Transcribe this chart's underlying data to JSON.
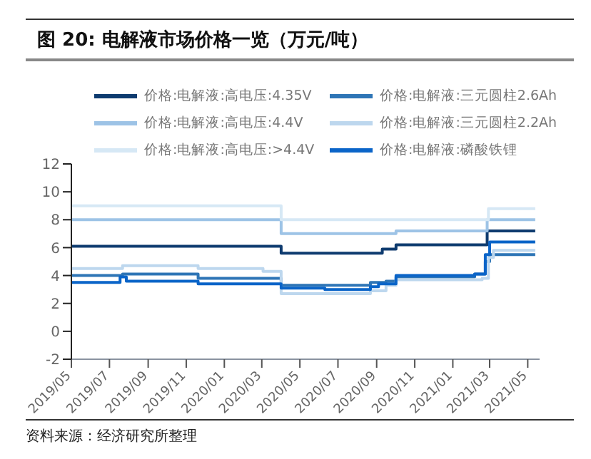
{
  "chart_data": {
    "type": "step",
    "title": "图 20: 电解液市场价格一览（万元/吨）",
    "annotations": [
      "资料来源：经济研究所整理"
    ],
    "xlim": [
      "2019-05-01",
      "2021-05-20"
    ],
    "xticks": [
      {
        "value": "2019-05",
        "label": "2019/05"
      },
      {
        "value": "2019-07",
        "label": "2019/07"
      },
      {
        "value": "2019-09",
        "label": "2019/09"
      },
      {
        "value": "2019-11",
        "label": "2019/11"
      },
      {
        "value": "2020-01",
        "label": "2020/01"
      },
      {
        "value": "2020-03",
        "label": "2020/03"
      },
      {
        "value": "2020-05",
        "label": "2020/05"
      },
      {
        "value": "2020-07",
        "label": "2020/07"
      },
      {
        "value": "2020-09",
        "label": "2020/09"
      },
      {
        "value": "2020-11",
        "label": "2020/11"
      },
      {
        "value": "2021-01",
        "label": "2021/01"
      },
      {
        "value": "2021-03",
        "label": "2021/03"
      },
      {
        "value": "2021-05",
        "label": "2021/05"
      }
    ],
    "ylim": [
      -2,
      12
    ],
    "yticks": [
      -2,
      0,
      2,
      4,
      6,
      8,
      10,
      12
    ],
    "grid": false,
    "legend": "top",
    "marker": "none",
    "line_style": "solid",
    "series": [
      {
        "name": "价格:电解液:高电压:4.35V",
        "color": "#0e3b6f",
        "x": [
          "2019-05-01",
          "2020-04-01",
          "2020-09-10",
          "2020-10-02",
          "2021-02-25",
          "2021-05-13"
        ],
        "values": [
          6.1,
          5.6,
          5.9,
          6.2,
          7.2,
          7.2
        ]
      },
      {
        "name": "价格:电解液:高电压:4.4V",
        "color": "#9dc3e6",
        "x": [
          "2019-05-01",
          "2020-04-01",
          "2020-10-02",
          "2021-02-25",
          "2021-05-13"
        ],
        "values": [
          8.0,
          7.0,
          7.2,
          8.0,
          8.0
        ]
      },
      {
        "name": "价格:电解液:高电压:>4.4V",
        "color": "#d6e8f5",
        "x": [
          "2019-05-01",
          "2020-04-01",
          "2021-02-27",
          "2021-05-13"
        ],
        "values": [
          9.0,
          8.0,
          8.8,
          8.8
        ]
      },
      {
        "name": "价格:电解液:三元圆柱2.6Ah",
        "color": "#2e75b6",
        "x": [
          "2019-05-01",
          "2019-07-22",
          "2019-11-20",
          "2020-04-01",
          "2020-08-22",
          "2020-09-16",
          "2020-10-02",
          "2021-02-05",
          "2021-02-22",
          "2021-03-01",
          "2021-05-13"
        ],
        "values": [
          4.0,
          4.1,
          3.8,
          3.3,
          3.5,
          3.6,
          3.9,
          4.1,
          5.0,
          5.5,
          5.5
        ]
      },
      {
        "name": "价格:电解液:三元圆柱2.2Ah",
        "color": "#bdd7ee",
        "x": [
          "2019-05-01",
          "2019-07-22",
          "2019-11-20",
          "2020-03-03",
          "2020-04-01",
          "2020-08-22",
          "2020-09-16",
          "2020-10-02",
          "2021-02-17",
          "2021-02-27",
          "2021-03-07",
          "2021-05-13"
        ],
        "values": [
          4.5,
          4.7,
          4.5,
          4.3,
          2.7,
          2.9,
          3.3,
          3.7,
          3.8,
          5.3,
          5.8,
          5.8
        ]
      },
      {
        "name": "价格:电解液:磷酸铁锂",
        "color": "#0a64c8",
        "x": [
          "2019-05-01",
          "2019-07-18",
          "2019-07-28",
          "2019-11-20",
          "2020-04-01",
          "2020-06-10",
          "2020-08-22",
          "2020-09-04",
          "2020-10-02",
          "2021-02-05",
          "2021-02-22",
          "2021-03-01",
          "2021-05-13"
        ],
        "values": [
          3.5,
          3.9,
          3.6,
          3.4,
          3.1,
          3.0,
          3.2,
          3.4,
          4.0,
          4.1,
          5.5,
          6.4,
          6.4
        ]
      }
    ]
  }
}
